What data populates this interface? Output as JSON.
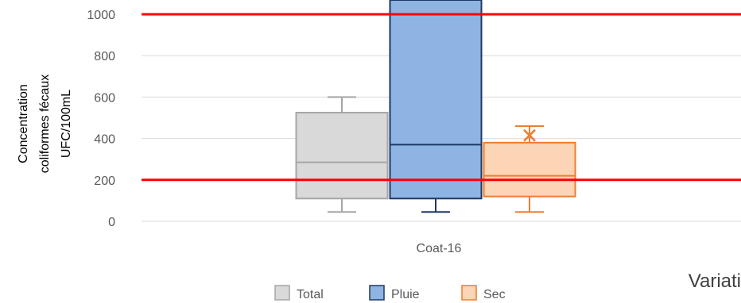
{
  "chart_data": {
    "type": "box",
    "ylabel_lines": [
      "Concentration",
      "coliformes fécaux",
      "UFC/100mL"
    ],
    "xlabel_partial": "Variati",
    "categories": [
      "Coat-16"
    ],
    "ylim": [
      0,
      1000
    ],
    "yticks": [
      "0",
      "200",
      "400",
      "600",
      "800",
      "1000"
    ],
    "grid": true,
    "legend_position": "bottom",
    "reference_lines": [
      {
        "value": 1000,
        "color": "#ff0000"
      },
      {
        "value": 200,
        "color": "#ff0000"
      }
    ],
    "series": [
      {
        "name": "Total",
        "fill": "#d9d9d9",
        "stroke": "#a6a6a6",
        "min": 45,
        "q1": 110,
        "median": 285,
        "q3": 525,
        "max": 600,
        "mean": null
      },
      {
        "name": "Pluie",
        "fill": "#8eb4e3",
        "stroke": "#1f3864",
        "min": 45,
        "q1": 110,
        "median": 370,
        "q3": 1000,
        "max": null,
        "mean": null
      },
      {
        "name": "Sec",
        "fill": "#fbd5b5",
        "stroke": "#ed7d31",
        "min": 45,
        "q1": 120,
        "median": 220,
        "q3": 380,
        "max": 460,
        "mean": 415
      }
    ]
  }
}
